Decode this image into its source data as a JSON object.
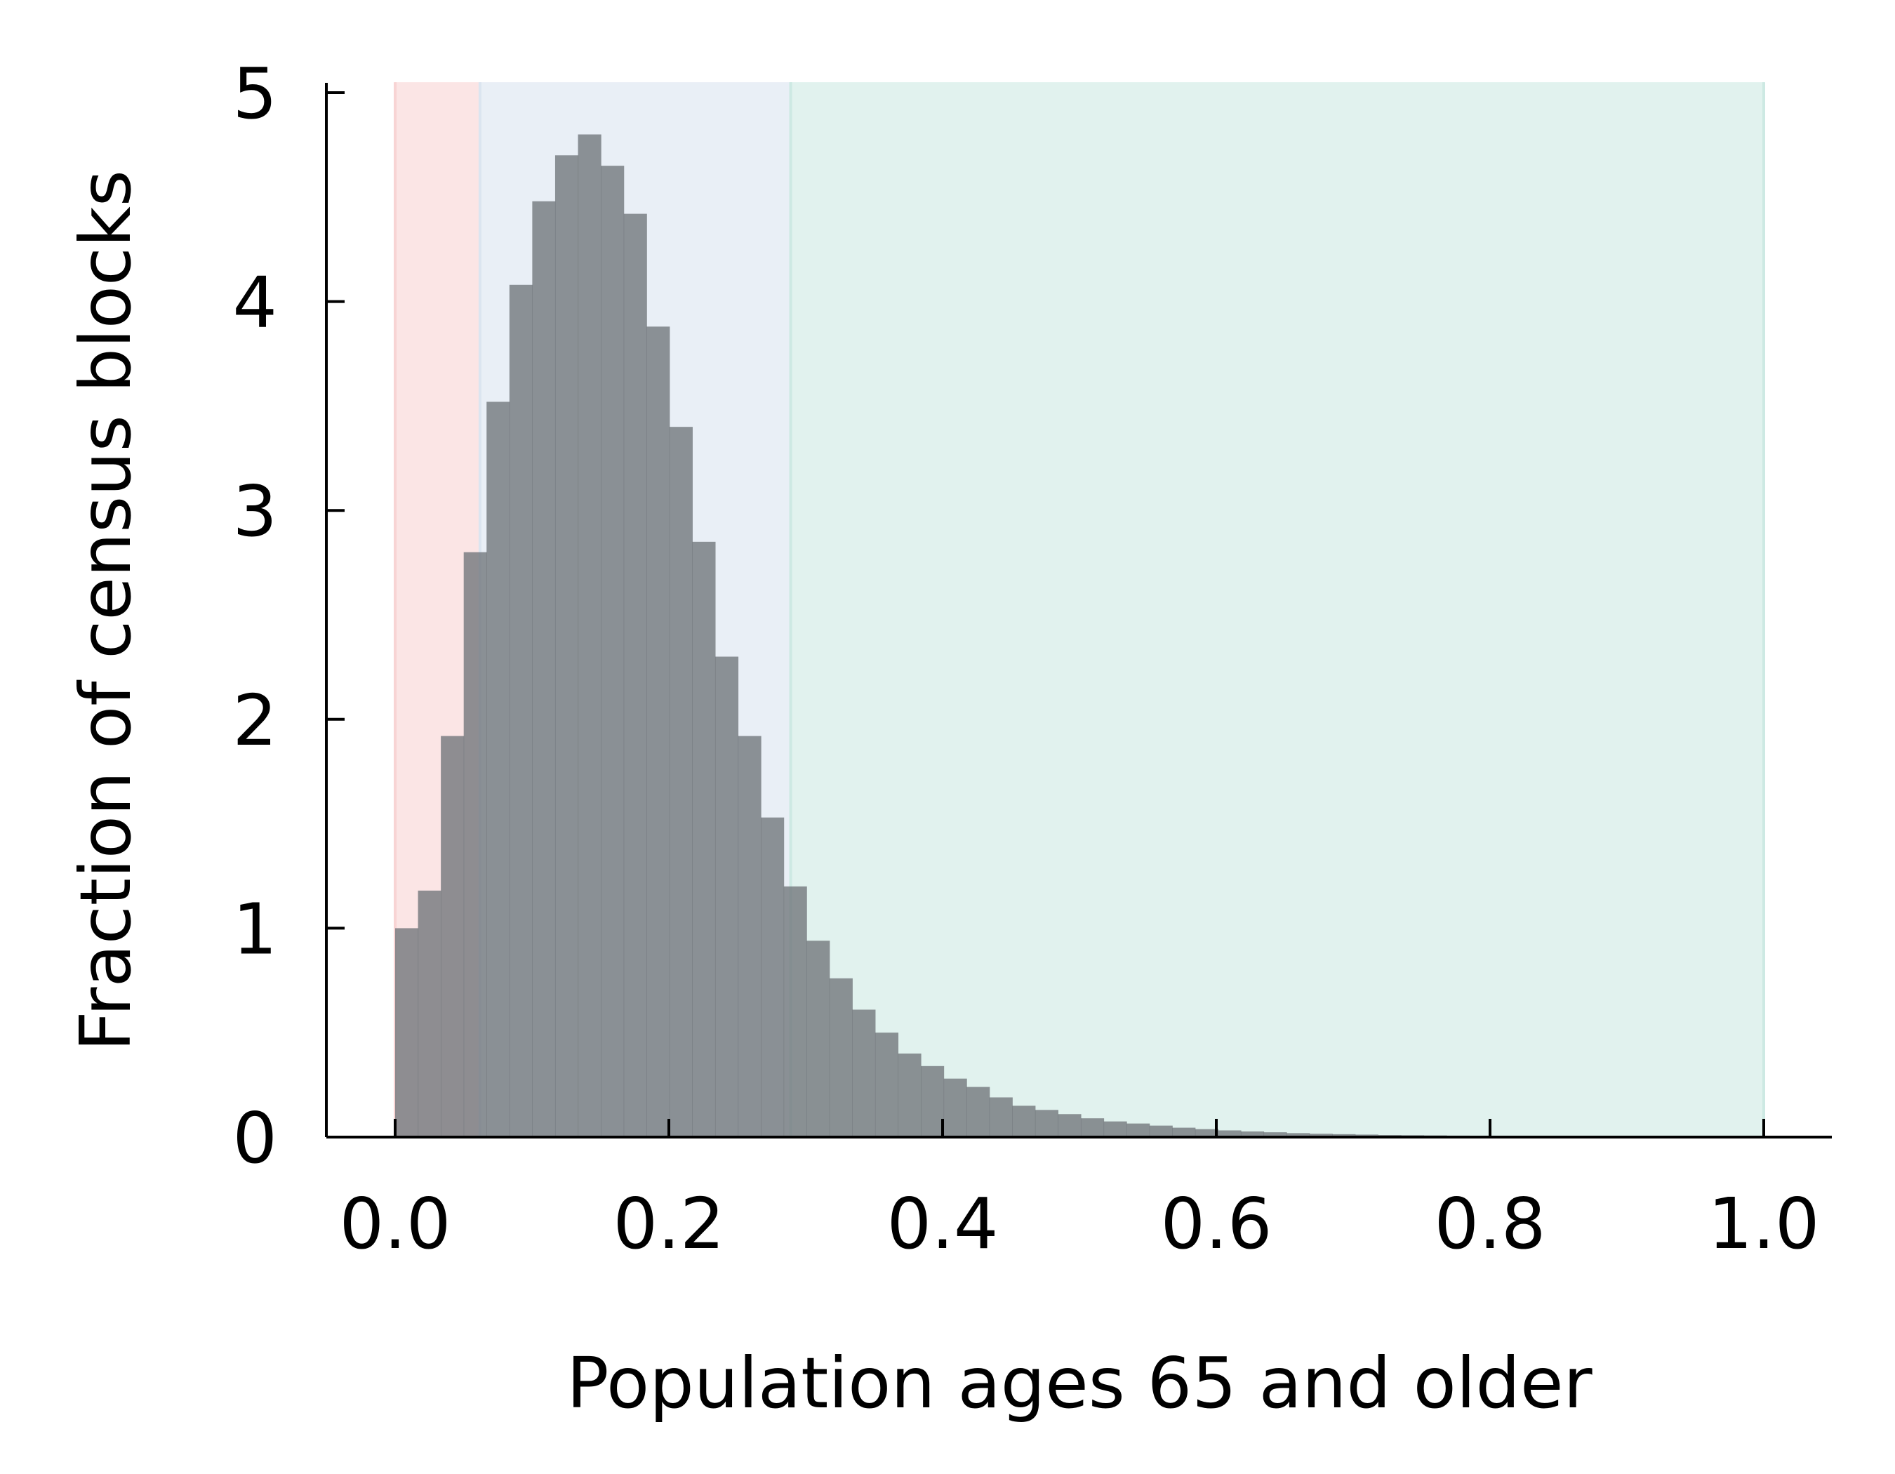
{
  "chart_data": {
    "type": "bar",
    "subtype": "histogram",
    "title": "",
    "xlabel": "Population ages 65 and older",
    "ylabel": "Fraction of census blocks",
    "xlim": [
      -0.05,
      1.05
    ],
    "ylim": [
      0,
      5.05
    ],
    "x_ticks": [
      0.0,
      0.2,
      0.4,
      0.6,
      0.8,
      1.0
    ],
    "x_tick_labels": [
      "0.0",
      "0.2",
      "0.4",
      "0.6",
      "0.8",
      "1.0"
    ],
    "y_ticks": [
      0,
      1,
      2,
      3,
      4,
      5
    ],
    "y_tick_labels": [
      "0",
      "1",
      "2",
      "3",
      "4",
      "5"
    ],
    "grid": false,
    "legend": "none",
    "bar_color": "#6f747a",
    "bin_width": 0.0167,
    "bin_edges_start": 0.0,
    "values": [
      1.0,
      1.18,
      1.92,
      2.8,
      3.52,
      4.08,
      4.48,
      4.7,
      4.8,
      4.65,
      4.42,
      3.88,
      3.4,
      2.85,
      2.3,
      1.92,
      1.53,
      1.2,
      0.94,
      0.76,
      0.61,
      0.5,
      0.4,
      0.34,
      0.28,
      0.24,
      0.19,
      0.15,
      0.13,
      0.11,
      0.09,
      0.075,
      0.065,
      0.055,
      0.045,
      0.038,
      0.032,
      0.027,
      0.023,
      0.019,
      0.016,
      0.014,
      0.012,
      0.01,
      0.009,
      0.008,
      0.007,
      0.006,
      0.005,
      0.005,
      0.004,
      0.004,
      0.003,
      0.003,
      0.003,
      0.002,
      0.002,
      0.002,
      0.002,
      0.002
    ],
    "shaded_regions": [
      {
        "x_start": 0.0,
        "x_end": 0.062,
        "color": "#f8d4d4"
      },
      {
        "x_start": 0.062,
        "x_end": 0.289,
        "color": "#dbe5f0"
      },
      {
        "x_start": 0.289,
        "x_end": 1.0,
        "color": "#cde9e3"
      }
    ]
  }
}
